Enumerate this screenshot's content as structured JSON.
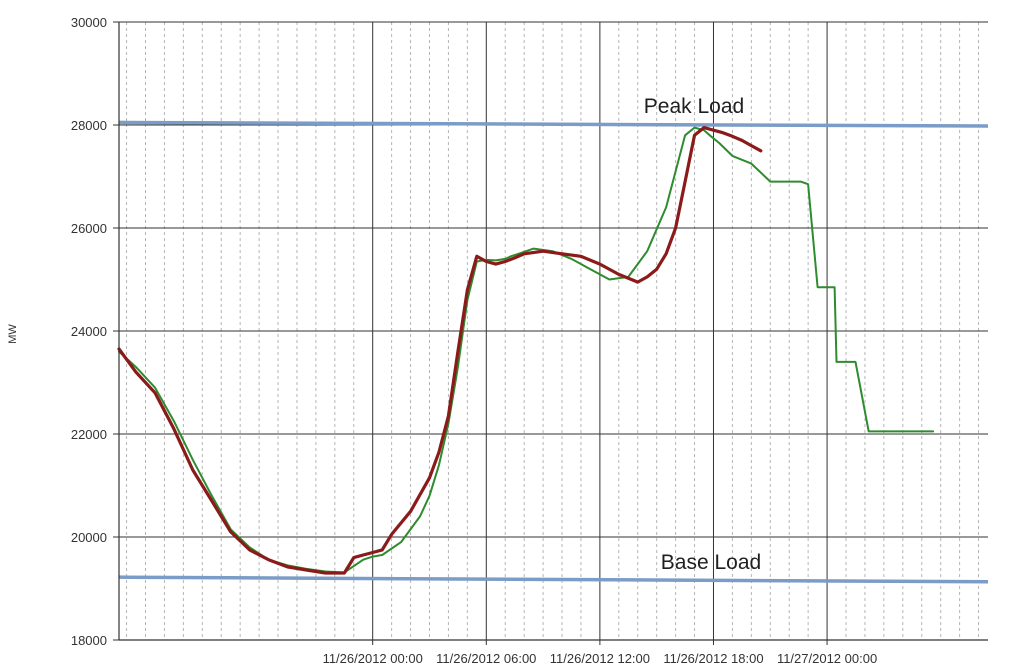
{
  "chart_data": {
    "type": "line",
    "title": "",
    "xlabel": "",
    "ylabel": "MW",
    "ylim": [
      18000,
      30000
    ],
    "yticks": [
      18000,
      20000,
      22000,
      24000,
      26000,
      28000,
      30000
    ],
    "xlim_hours": [
      -13.4,
      32.5
    ],
    "x_major_ticks": [
      {
        "label": "11/26/2012 00:00",
        "hour": 0
      },
      {
        "label": "11/26/2012 06:00",
        "hour": 6
      },
      {
        "label": "11/26/2012 12:00",
        "hour": 12
      },
      {
        "label": "11/26/2012 18:00",
        "hour": 18
      },
      {
        "label": "11/27/2012 00:00",
        "hour": 24
      }
    ],
    "x_minor_tick_hours": 1,
    "grid": true,
    "legend": "none",
    "reference_lines": [
      {
        "label": "Peak Load",
        "value_start": 28050,
        "value_end": 27980,
        "color": "#7a9cc6"
      },
      {
        "label": "Base Load",
        "value_start": 19220,
        "value_end": 19130,
        "color": "#7a9cc6"
      }
    ],
    "colors": {
      "forecast": "#2e8b2e",
      "actual": "#8b1a1a",
      "reference": "#7a9cc6",
      "major_grid": "#333333",
      "minor_grid": "#b5b5b5"
    },
    "series": [
      {
        "role": "forecast",
        "x_hours": [
          -13.4,
          -12.5,
          -11.5,
          -10.5,
          -9.5,
          -8.5,
          -7.5,
          -6.5,
          -5.5,
          -4.5,
          -3.5,
          -2.5,
          -1.5,
          -0.5,
          0,
          0.5,
          1.5,
          2.5,
          3.0,
          3.5,
          4.0,
          4.5,
          5.0,
          5.5,
          6.0,
          6.5,
          7.0,
          7.3,
          7.7,
          8.5,
          9.5,
          10.5,
          11.5,
          12.5,
          13.5,
          14.5,
          15.5,
          16.5,
          17.0,
          17.5,
          17.8,
          18.3,
          19.0,
          20.0,
          21.0,
          22.0,
          22.6,
          23.0,
          23.5,
          24.0,
          24.4,
          24.5,
          24.9,
          25.0,
          25.5,
          26.2,
          26.7,
          26.8,
          26.9,
          27.2,
          28.2,
          28.3,
          28.7,
          29.0,
          29.6
        ],
        "values": [
          23600,
          23300,
          22900,
          22250,
          21500,
          20800,
          20150,
          19800,
          19560,
          19450,
          19380,
          19330,
          19310,
          19560,
          19620,
          19650,
          19900,
          20400,
          20800,
          21400,
          22200,
          23300,
          24600,
          25350,
          25380,
          25370,
          25400,
          25450,
          25500,
          25600,
          25550,
          25400,
          25200,
          25000,
          25050,
          25550,
          26400,
          27800,
          27950,
          27900,
          27800,
          27650,
          27400,
          27250,
          26900,
          26900,
          26900,
          26850,
          24850,
          24850,
          24850,
          23400,
          23400,
          23400,
          23400,
          22050,
          22050,
          22050,
          22050,
          22050,
          22050,
          22050,
          22050,
          22050,
          22050
        ]
      },
      {
        "role": "actual",
        "x_hours": [
          -13.4,
          -12.5,
          -11.5,
          -10.5,
          -9.5,
          -8.5,
          -7.5,
          -6.5,
          -5.5,
          -4.5,
          -3.5,
          -2.5,
          -1.5,
          -1.0,
          -0.5,
          0,
          0.5,
          1.0,
          2.0,
          3.0,
          3.5,
          4.0,
          4.5,
          5.0,
          5.5,
          6.0,
          6.5,
          7.0,
          7.5,
          8.0,
          9.0,
          10.0,
          11.0,
          12.0,
          13.0,
          14.0,
          14.5,
          15.0,
          15.5,
          16.0,
          16.5,
          17.0,
          17.5,
          18.0,
          18.5,
          19.0,
          19.5,
          20.0,
          20.5
        ],
        "values": [
          23650,
          23200,
          22800,
          22100,
          21300,
          20700,
          20100,
          19750,
          19560,
          19420,
          19360,
          19300,
          19300,
          19600,
          19650,
          19700,
          19750,
          20050,
          20500,
          21150,
          21650,
          22350,
          23600,
          24800,
          25450,
          25350,
          25300,
          25350,
          25420,
          25500,
          25550,
          25500,
          25450,
          25300,
          25100,
          24950,
          25050,
          25200,
          25500,
          26000,
          26900,
          27800,
          27950,
          27900,
          27850,
          27780,
          27700,
          27600,
          27500
        ]
      }
    ]
  },
  "labels": {
    "y_axis_title": "MW",
    "peak_load": "Peak Load",
    "base_load": "Base Load"
  }
}
